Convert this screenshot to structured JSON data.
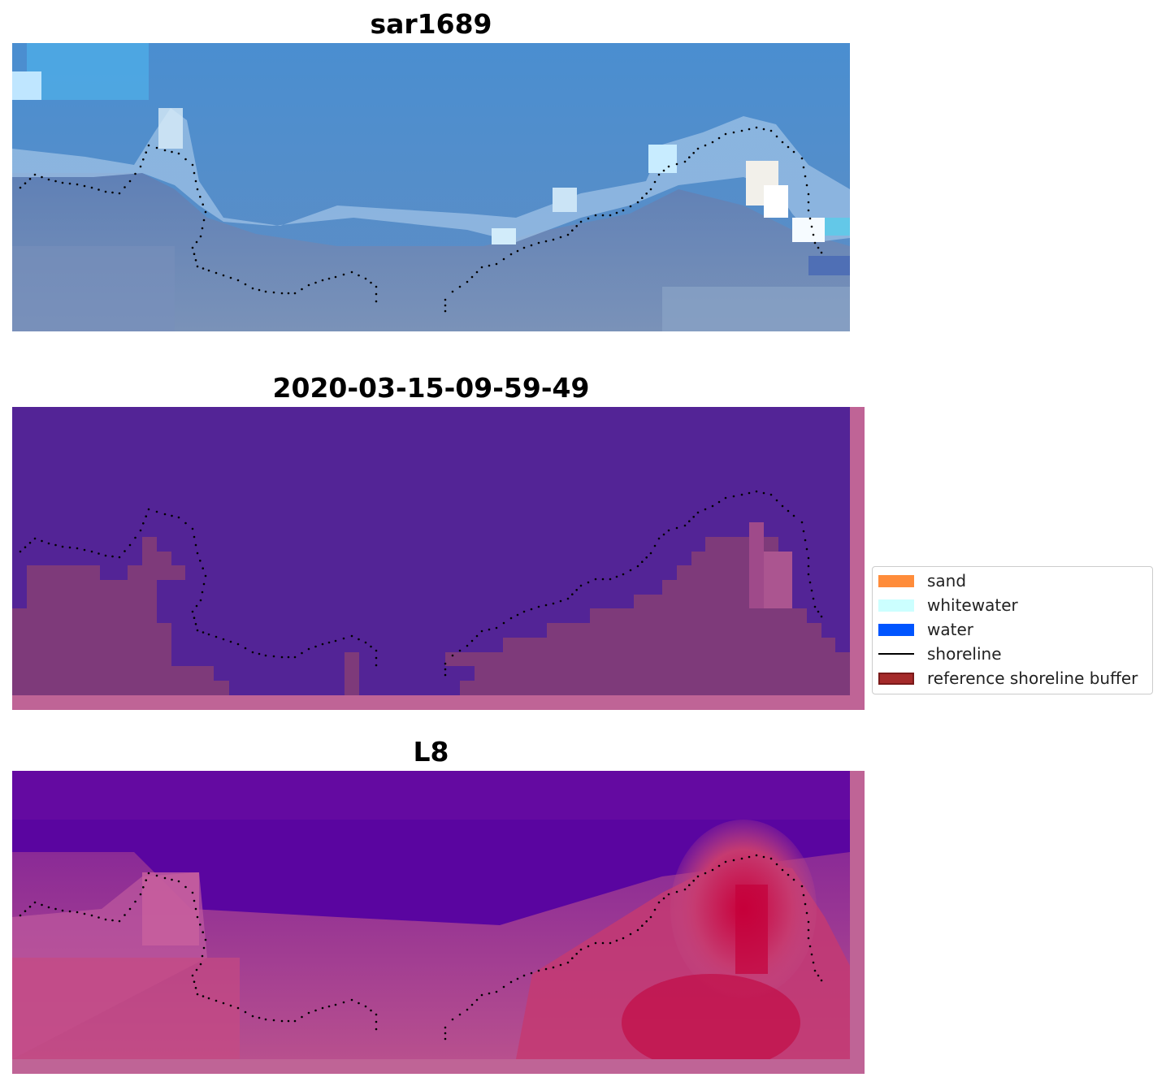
{
  "panels": [
    {
      "id": "sar",
      "title": "sar1689"
    },
    {
      "id": "classified",
      "title": "2020-03-15-09-59-49"
    },
    {
      "id": "l8",
      "title": "L8"
    }
  ],
  "legend": {
    "items": [
      {
        "label": "sand",
        "kind": "patch",
        "color": "#ff8c3a"
      },
      {
        "label": "whitewater",
        "kind": "patch",
        "color": "#ccffff"
      },
      {
        "label": "water",
        "kind": "patch",
        "color": "#0055ff"
      },
      {
        "label": "shoreline",
        "kind": "line",
        "color": "#000000"
      },
      {
        "label": "reference shoreline buffer",
        "kind": "patch",
        "color": "#a52a2a",
        "edge": "#7a1a1a"
      }
    ]
  },
  "colors": {
    "ocean": "#6f8fc0",
    "class_water": "#532496",
    "class_land": "#7e3a7a",
    "buffer_band": "#bf6496",
    "l8_dark": "#55009a",
    "l8_hot": "#c80030",
    "shoreline_dots": "#000000"
  }
}
